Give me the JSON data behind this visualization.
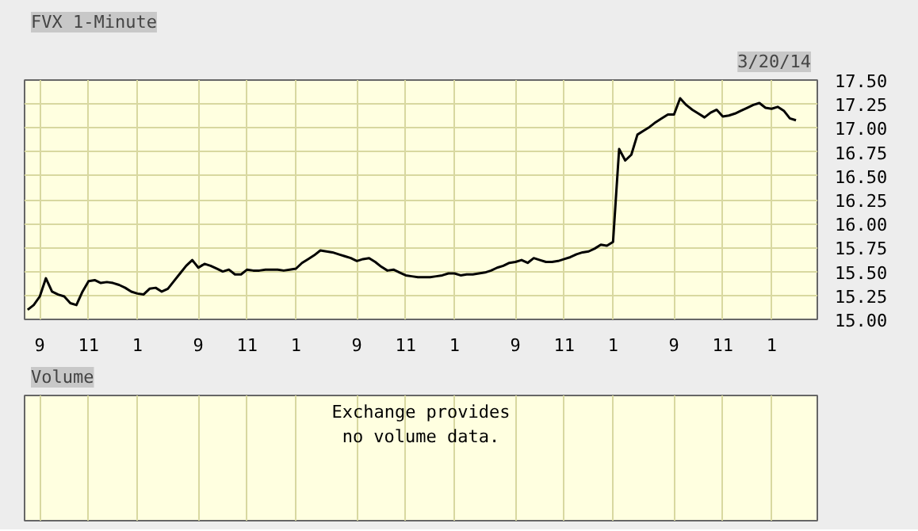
{
  "chart_data": {
    "type": "line",
    "title": "FVX 1-Minute",
    "annotations": [
      "3/20/14",
      "Volume",
      "Exchange provides\nno volume data."
    ],
    "categories": [
      null,
      null,
      "9",
      null,
      null,
      null,
      null,
      null,
      null,
      null,
      "11",
      null,
      null,
      null,
      null,
      null,
      null,
      null,
      "1",
      null,
      null,
      null,
      null,
      null,
      null,
      null,
      null,
      null,
      "9",
      null,
      null,
      null,
      null,
      null,
      null,
      null,
      "11",
      null,
      null,
      null,
      null,
      null,
      null,
      null,
      "1",
      null,
      null,
      null,
      null,
      null,
      null,
      null,
      null,
      null,
      "9",
      null,
      null,
      null,
      null,
      null,
      null,
      null,
      "11",
      null,
      null,
      null,
      null,
      null,
      null,
      null,
      "1",
      null,
      null,
      null,
      null,
      null,
      null,
      null,
      null,
      null,
      "9",
      null,
      null,
      null,
      null,
      null,
      null,
      null,
      "11",
      null,
      null,
      null,
      null,
      null,
      null,
      null,
      "1",
      null,
      null,
      null,
      null,
      null,
      null,
      null,
      null,
      null,
      "9",
      null,
      null,
      null,
      null,
      null,
      null,
      null,
      "11",
      null,
      null,
      null,
      null,
      null,
      null,
      null,
      "1",
      null,
      null,
      null,
      null,
      null,
      null,
      null
    ],
    "series": [
      {
        "color": "#000000",
        "values": [
          15.1,
          15.15,
          15.24,
          15.43,
          15.29,
          15.26,
          15.24,
          15.17,
          15.15,
          15.29,
          15.4,
          15.41,
          15.38,
          15.39,
          15.38,
          15.36,
          15.33,
          15.29,
          15.27,
          15.26,
          15.32,
          15.33,
          15.29,
          15.32,
          15.4,
          15.48,
          15.56,
          15.62,
          15.54,
          15.58,
          15.56,
          15.53,
          15.5,
          15.52,
          15.47,
          15.47,
          15.52,
          15.51,
          15.51,
          15.52,
          15.52,
          15.52,
          15.51,
          15.52,
          15.53,
          15.59,
          15.63,
          15.67,
          15.72,
          15.71,
          15.7,
          15.68,
          15.66,
          15.64,
          15.61,
          15.63,
          15.64,
          15.6,
          15.55,
          15.51,
          15.52,
          15.49,
          15.46,
          15.45,
          15.44,
          15.44,
          15.44,
          15.45,
          15.46,
          15.48,
          15.48,
          15.46,
          15.47,
          15.47,
          15.48,
          15.49,
          15.51,
          15.54,
          15.56,
          15.59,
          15.6,
          15.62,
          15.59,
          15.64,
          15.62,
          15.6,
          15.6,
          15.61,
          15.63,
          15.65,
          15.68,
          15.7,
          15.71,
          15.74,
          15.78,
          15.77,
          15.81,
          16.78,
          16.66,
          16.72,
          16.93,
          16.97,
          17.01,
          17.06,
          17.1,
          17.14,
          17.14,
          17.31,
          17.24,
          17.19,
          17.15,
          17.11,
          17.16,
          17.19,
          17.12,
          17.13,
          17.15,
          17.18,
          17.21,
          17.24,
          17.26,
          17.21,
          17.2,
          17.22,
          17.18,
          17.1,
          17.08,
          null,
          null,
          null
        ]
      }
    ],
    "ylim": [
      15,
      17.5
    ],
    "yticks": [
      {
        "value": 15,
        "label": "15.00"
      },
      {
        "value": 15.25,
        "label": "15.25"
      },
      {
        "value": 15.5,
        "label": "15.50"
      },
      {
        "value": 15.75,
        "label": "15.75"
      },
      {
        "value": 16,
        "label": "16.00"
      },
      {
        "value": 16.25,
        "label": "16.25"
      },
      {
        "value": 16.5,
        "label": "16.50"
      },
      {
        "value": 16.75,
        "label": "16.75"
      },
      {
        "value": 17,
        "label": "17.00"
      },
      {
        "value": 17.25,
        "label": "17.25"
      },
      {
        "value": 17.5,
        "label": "17.50"
      }
    ],
    "grid": true
  }
}
